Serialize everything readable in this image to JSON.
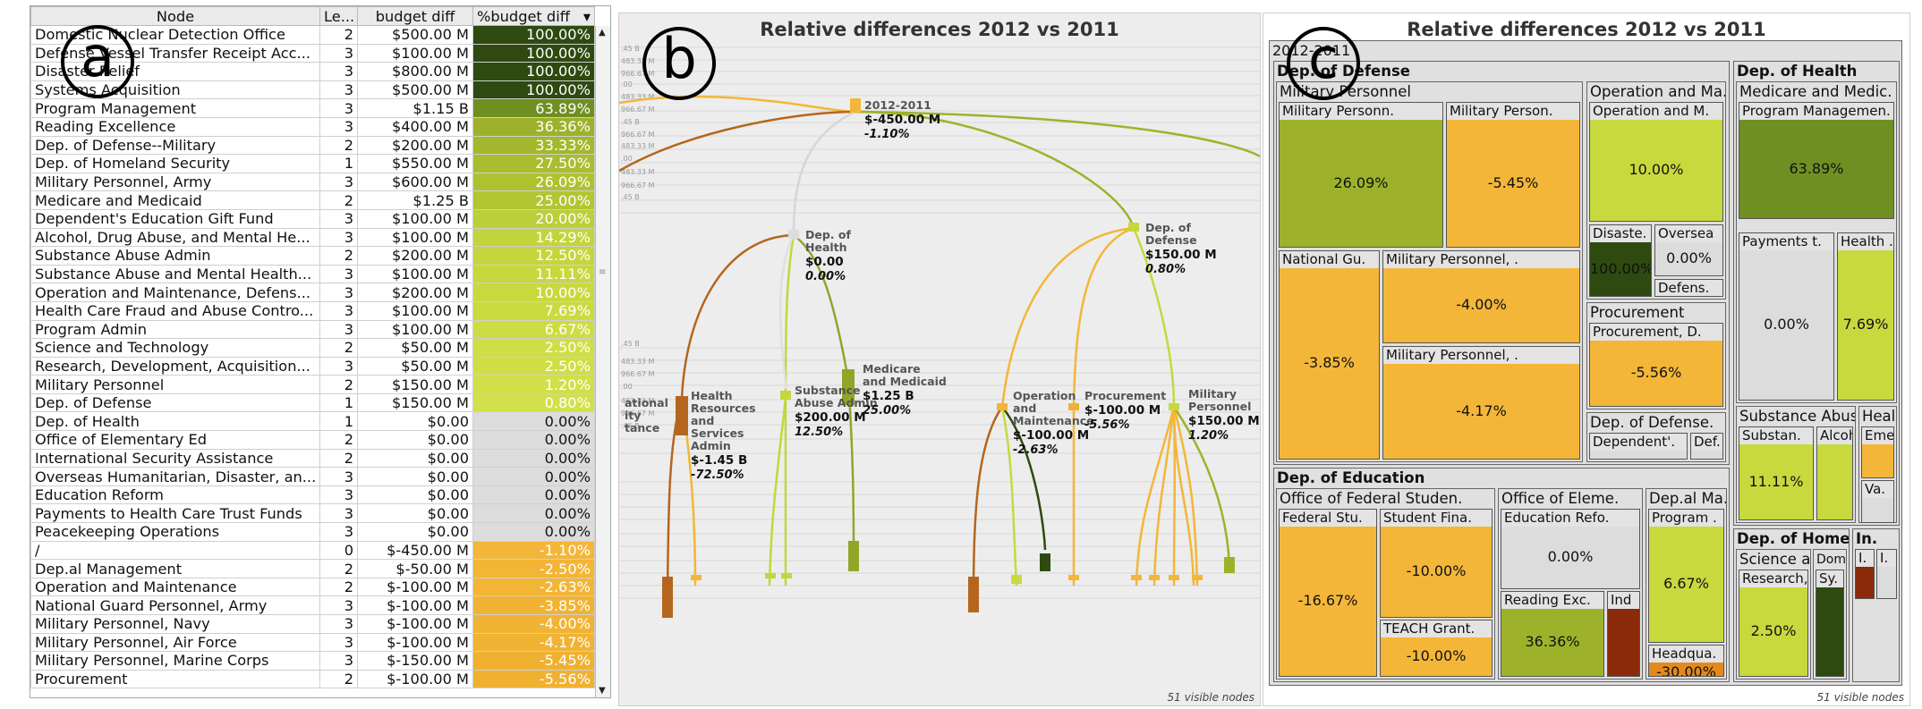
{
  "badges": {
    "a": "a",
    "b": "b",
    "c": "c"
  },
  "table": {
    "headers": [
      "Node",
      "Le...",
      "budget diff",
      "%budget diff"
    ],
    "rows": [
      [
        "Domestic Nuclear Detection Office",
        "2",
        "$500.00 M",
        "100.00%",
        "#2e4a10",
        "#fff"
      ],
      [
        "Defense Vessel Transfer Receipt Acc...",
        "3",
        "$100.00 M",
        "100.00%",
        "#2e4a10",
        "#fff"
      ],
      [
        "Disaster Relief",
        "3",
        "$800.00 M",
        "100.00%",
        "#2e4a10",
        "#fff"
      ],
      [
        "Systems Acquisition",
        "3",
        "$500.00 M",
        "100.00%",
        "#2e4a10",
        "#fff"
      ],
      [
        "Program Management",
        "3",
        "$1.15 B",
        "63.89%",
        "#6f8f22",
        "#fff"
      ],
      [
        "Reading Excellence",
        "3",
        "$400.00 M",
        "36.36%",
        "#9db22a",
        "#fff"
      ],
      [
        "Dep. of Defense--Military",
        "2",
        "$200.00 M",
        "33.33%",
        "#a3b82c",
        "#fff"
      ],
      [
        "Dep. of Homeland Security",
        "1",
        "$550.00 M",
        "27.50%",
        "#a9bd2e",
        "#fff"
      ],
      [
        "Military Personnel, Army",
        "3",
        "$600.00 M",
        "26.09%",
        "#aec230",
        "#fff"
      ],
      [
        "Medicare and Medicaid",
        "2",
        "$1.25 B",
        "25.00%",
        "#b2c532",
        "#fff"
      ],
      [
        "Dependent's Education Gift Fund",
        "3",
        "$100.00 M",
        "20.00%",
        "#bbcf38",
        "#fff"
      ],
      [
        "Alcohol, Drug Abuse, and Mental He...",
        "3",
        "$100.00 M",
        "14.29%",
        "#c2d43b",
        "#fff"
      ],
      [
        "Substance Abuse Admin",
        "2",
        "$200.00 M",
        "12.50%",
        "#c4d63c",
        "#fff"
      ],
      [
        "Substance Abuse and Mental Health...",
        "3",
        "$100.00 M",
        "11.11%",
        "#c6d83d",
        "#fff"
      ],
      [
        "Operation and Maintenance, Defens...",
        "3",
        "$200.00 M",
        "10.00%",
        "#c8d93e",
        "#fff"
      ],
      [
        "Health Care Fraud and Abuse Contro...",
        "3",
        "$100.00 M",
        "7.69%",
        "#cadb40",
        "#fff"
      ],
      [
        "Program Admin",
        "3",
        "$100.00 M",
        "6.67%",
        "#ccdc42",
        "#fff"
      ],
      [
        "Science and Technology",
        "2",
        "$50.00 M",
        "2.50%",
        "#cfde45",
        "#fff"
      ],
      [
        "Research, Development, Acquisition...",
        "3",
        "$50.00 M",
        "2.50%",
        "#cfde45",
        "#fff"
      ],
      [
        "Military Personnel",
        "2",
        "$150.00 M",
        "1.20%",
        "#d1df48",
        "#fff"
      ],
      [
        "Dep. of Defense",
        "1",
        "$150.00 M",
        "0.80%",
        "#d2e04a",
        "#fff"
      ],
      [
        "Dep. of Health",
        "1",
        "$0.00",
        "0.00%",
        "#dcdcdc",
        "#111"
      ],
      [
        "Office of Elementary Ed",
        "2",
        "$0.00",
        "0.00%",
        "#dcdcdc",
        "#111"
      ],
      [
        "International Security Assistance",
        "2",
        "$0.00",
        "0.00%",
        "#dcdcdc",
        "#111"
      ],
      [
        "Overseas Humanitarian, Disaster, an...",
        "3",
        "$0.00",
        "0.00%",
        "#dcdcdc",
        "#111"
      ],
      [
        "Education Reform",
        "3",
        "$0.00",
        "0.00%",
        "#dcdcdc",
        "#111"
      ],
      [
        "Payments to Health Care Trust Funds",
        "3",
        "$0.00",
        "0.00%",
        "#dcdcdc",
        "#111"
      ],
      [
        "Peacekeeping Operations",
        "3",
        "$0.00",
        "0.00%",
        "#dcdcdc",
        "#111"
      ],
      [
        "/",
        "0",
        "$-450.00 M",
        "-1.10%",
        "#f4b638",
        "#fff"
      ],
      [
        "Dep.al Management",
        "2",
        "$-50.00 M",
        "-2.50%",
        "#f2b535",
        "#fff"
      ],
      [
        "Operation and Maintenance",
        "2",
        "$-100.00 M",
        "-2.63%",
        "#f2b535",
        "#fff"
      ],
      [
        "National Guard Personnel, Army",
        "3",
        "$-100.00 M",
        "-3.85%",
        "#f1b333",
        "#fff"
      ],
      [
        "Military Personnel, Navy",
        "3",
        "$-100.00 M",
        "-4.00%",
        "#f1b333",
        "#fff"
      ],
      [
        "Military Personnel, Air Force",
        "3",
        "$-100.00 M",
        "-4.17%",
        "#f1b333",
        "#fff"
      ],
      [
        "Military Personnel, Marine Corps",
        "3",
        "$-150.00 M",
        "-5.45%",
        "#f0b131",
        "#fff"
      ],
      [
        "Procurement",
        "2",
        "$-100.00 M",
        "-5.56%",
        "#f0b131",
        "#fff"
      ]
    ]
  },
  "panelB": {
    "title": "Relative differences 2012 vs 2011",
    "visible_nodes": "51 visible nodes",
    "axis_ticks": [
      ".45 B",
      "483.33 M",
      "966.67 M",
      ".00",
      "483.33 M",
      "966.67 M",
      ".45 B",
      "966.67 M",
      "483.33 M",
      ".00",
      "483.33 M",
      "966.67 M",
      ".45 B",
      ".45 B",
      "483.33 M",
      "966.67 M",
      ".00",
      "483.33 M",
      "966.67 M",
      ".45 B"
    ],
    "nodes": [
      {
        "id": "root",
        "name": "2012-2011",
        "value": "$-450.00 M",
        "pct": "-1.10%",
        "color": "#f4b638"
      },
      {
        "id": "health",
        "name": "Dep. of Health",
        "value": "$0.00",
        "pct": "0.00%",
        "color": "#dcdcdc"
      },
      {
        "id": "defense",
        "name": "Dep. of Defense",
        "value": "$150.00 M",
        "pct": "0.80%",
        "color": "#c6d83d"
      },
      {
        "id": "hrsa",
        "name": "Health Resources and Services Admin",
        "value": "$-1.45 B",
        "pct": "-72.50%",
        "color": "#b5651d"
      },
      {
        "id": "saa",
        "name": "Substance Abuse Admin",
        "value": "$200.00 M",
        "pct": "12.50%",
        "color": "#c4d63c"
      },
      {
        "id": "medicare",
        "name": "Medicare and Medicaid",
        "value": "$1.25 B",
        "pct": "25.00%",
        "color": "#8fa628"
      },
      {
        "id": "om",
        "name": "Operation and Maintenance",
        "value": "$-100.00 M",
        "pct": "-2.63%",
        "color": "#f2b535"
      },
      {
        "id": "proc",
        "name": "Procurement",
        "value": "$-100.00 M",
        "pct": "-5.56%",
        "color": "#f0b131"
      },
      {
        "id": "milpers",
        "name": "Military Personnel",
        "value": "$150.00 M",
        "pct": "1.20%",
        "color": "#c6d83d"
      },
      {
        "id": "national",
        "name": "National Security Assistance",
        "value": "",
        "pct": "",
        "color": "#f2b535"
      }
    ]
  },
  "panelC": {
    "title": "Relative differences 2012 vs 2011",
    "visible_nodes": "51 visible nodes",
    "root_label": "2012-2011",
    "groups": {
      "defense": "Dep. of Defense",
      "milpers": "Military Personnel",
      "opmain": "Operation and Ma.",
      "procurement": "Procurement",
      "defense_sub": "Dep. of Defense.",
      "health": "Dep. of Health",
      "medicare": "Medicare and Medic.",
      "subabuse": "Substance Abus.",
      "heal2": "Heal.",
      "education": "Dep. of Education",
      "fedstudent": "Office of Federal Studen.",
      "elem": "Office of Eleme.",
      "depal": "Dep.al Ma.",
      "homeland": "Dep. of Homeland.",
      "in": "In.",
      "science": "Science and .",
      "domi": "Domi."
    },
    "cells": [
      {
        "id": "mp_army",
        "name": "Military Personn.",
        "pct": "26.09%",
        "color": "#9db22a"
      },
      {
        "id": "mp_marine",
        "name": "Military Person.",
        "pct": "-5.45%",
        "color": "#f4b638"
      },
      {
        "id": "natguard",
        "name": "National Gu.",
        "pct": "-3.85%",
        "color": "#f4b638"
      },
      {
        "id": "mp_navy",
        "name": "Military Personnel, .",
        "pct": "-4.00%",
        "color": "#f4b638"
      },
      {
        "id": "mp_air",
        "name": "Military Personnel, .",
        "pct": "-4.17%",
        "color": "#f4b638"
      },
      {
        "id": "om_def",
        "name": "Operation and M.",
        "pct": "10.00%",
        "color": "#c8d93e"
      },
      {
        "id": "disaster",
        "name": "Disaste.",
        "pct": "100.00%",
        "color": "#2e4a10"
      },
      {
        "id": "oversea",
        "name": "Oversea",
        "pct": "0.00%",
        "color": "#dcdcdc"
      },
      {
        "id": "defens",
        "name": "Defens.",
        "pct": "",
        "color": "#dcdcdc"
      },
      {
        "id": "proc_d",
        "name": "Procurement, D.",
        "pct": "-5.56%",
        "color": "#f4b638"
      },
      {
        "id": "dependent",
        "name": "Dependent'.",
        "pct": "",
        "color": "#dcdcdc"
      },
      {
        "id": "def2",
        "name": "Def.",
        "pct": "",
        "color": "#dcdcdc"
      },
      {
        "id": "progmgmt",
        "name": "Program Managemen.",
        "pct": "63.89%",
        "color": "#6f8f22"
      },
      {
        "id": "payments",
        "name": "Payments t.",
        "pct": "0.00%",
        "color": "#dcdcdc"
      },
      {
        "id": "healthc",
        "name": "Health .",
        "pct": "7.69%",
        "color": "#c8d93e"
      },
      {
        "id": "substan",
        "name": "Substan.",
        "pct": "11.11%",
        "color": "#c8d93e"
      },
      {
        "id": "alcoh",
        "name": "Alcoh.",
        "pct": "",
        "color": "#c8d93e"
      },
      {
        "id": "eme",
        "name": "Eme.",
        "pct": "",
        "color": "#f4b638"
      },
      {
        "id": "va",
        "name": "Va.",
        "pct": "",
        "color": "#dcdcdc"
      },
      {
        "id": "fedstu",
        "name": "Federal Stu.",
        "pct": "-16.67%",
        "color": "#f4b638"
      },
      {
        "id": "studentfin",
        "name": "Student Fina.",
        "pct": "-10.00%",
        "color": "#f4b638"
      },
      {
        "id": "teach",
        "name": "TEACH Grant.",
        "pct": "-10.00%",
        "color": "#f4b638"
      },
      {
        "id": "edreform",
        "name": "Education Refo.",
        "pct": "0.00%",
        "color": "#dcdcdc"
      },
      {
        "id": "readexc",
        "name": "Reading Exc.",
        "pct": "36.36%",
        "color": "#9db22a"
      },
      {
        "id": "ind",
        "name": "Ind",
        "pct": "",
        "color": "#8b2a0a"
      },
      {
        "id": "program",
        "name": "Program .",
        "pct": "6.67%",
        "color": "#c8d93e"
      },
      {
        "id": "headqua",
        "name": "Headqua.",
        "pct": "-30.00%",
        "color": "#e38a1d"
      },
      {
        "id": "research",
        "name": "Research, D.",
        "pct": "2.50%",
        "color": "#c8d93e"
      },
      {
        "id": "sy",
        "name": "Sy.",
        "pct": "",
        "color": "#2e4a10"
      },
      {
        "id": "i1",
        "name": "I.",
        "pct": "",
        "color": "#8b2a0a"
      },
      {
        "id": "i2",
        "name": "I.",
        "pct": "",
        "color": "#dcdcdc"
      }
    ]
  }
}
